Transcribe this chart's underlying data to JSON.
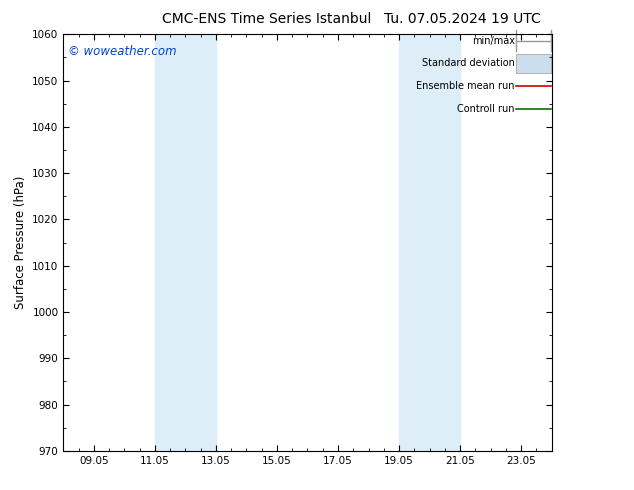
{
  "title_left": "CMC-ENS Time Series Istanbul",
  "title_right": "Tu. 07.05.2024 19 UTC",
  "ylabel": "Surface Pressure (hPa)",
  "ylim": [
    970,
    1060
  ],
  "yticks": [
    970,
    980,
    990,
    1000,
    1010,
    1020,
    1030,
    1040,
    1050,
    1060
  ],
  "xtick_labels": [
    "09.05",
    "11.05",
    "13.05",
    "15.05",
    "17.05",
    "19.05",
    "21.05",
    "23.05"
  ],
  "xtick_positions": [
    1,
    3,
    5,
    7,
    9,
    11,
    13,
    15
  ],
  "xlim": [
    0,
    16
  ],
  "shaded_bands": [
    {
      "x_start": 3.0,
      "x_end": 5.0,
      "color": "#ddeef8"
    },
    {
      "x_start": 11.0,
      "x_end": 13.0,
      "color": "#ddeef8"
    }
  ],
  "watermark": "© woweather.com",
  "watermark_color": "#0044cc",
  "legend_labels": [
    "min/max",
    "Standard deviation",
    "Ensemble mean run",
    "Controll run"
  ],
  "legend_line_color": "#999999",
  "legend_fill_color": "#ccddee",
  "legend_red": "#cc0000",
  "legend_green": "#007700",
  "background_color": "#ffffff",
  "plot_bg_color": "#ffffff",
  "title_fontsize": 10,
  "tick_fontsize": 7.5,
  "ylabel_fontsize": 8.5,
  "legend_fontsize": 7
}
